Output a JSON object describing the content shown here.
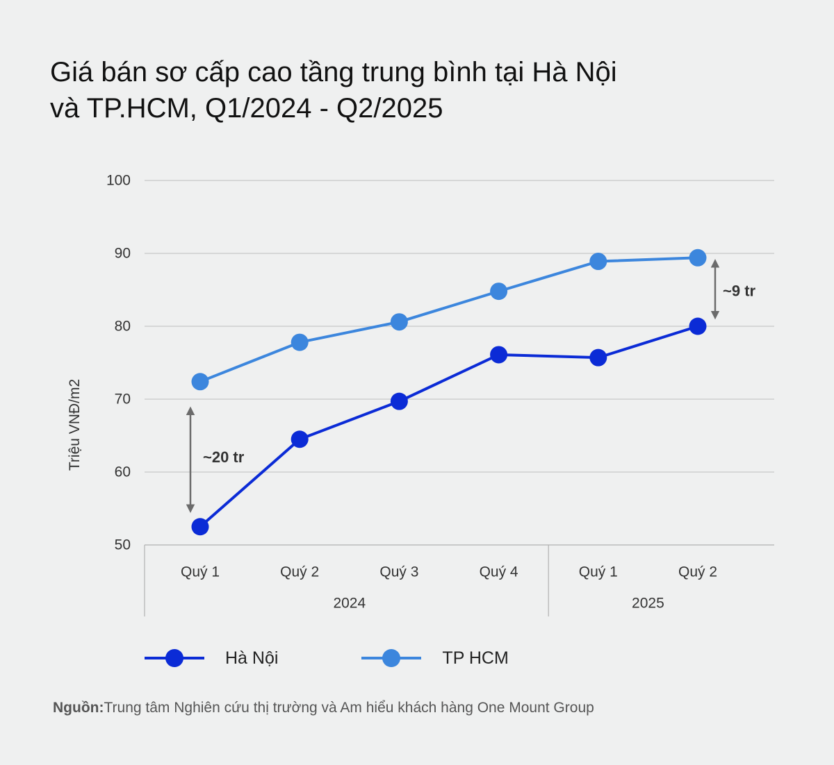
{
  "title_line1": "Giá bán sơ cấp cao tầng trung bình tại Hà Nội",
  "title_line2": "và TP.HCM, Q1/2024 - Q2/2025",
  "source_label": "Nguồn:",
  "source_text": "Trung tâm Nghiên cứu thị trường và Am hiểu khách hàng One Mount Group",
  "annotations": {
    "gap_start": "~20 tr",
    "gap_end": "~9 tr"
  },
  "colors": {
    "ha_noi": "#0b2bd6",
    "tp_hcm": "#3c86dd",
    "grid": "#c8c8c8",
    "arrow": "#6b6b6b"
  },
  "chart_data": {
    "type": "line",
    "categories": [
      "Quý 1",
      "Quý 2",
      "Quý 3",
      "Quý 4",
      "Quý 1",
      "Quý 2"
    ],
    "groups": [
      {
        "label": "2024",
        "count": 4
      },
      {
        "label": "2025",
        "count": 2
      }
    ],
    "series": [
      {
        "name": "Hà Nội",
        "values": [
          52.5,
          64.5,
          69.7,
          76.1,
          75.7,
          80.0
        ]
      },
      {
        "name": "TP HCM",
        "values": [
          72.4,
          77.8,
          80.6,
          84.8,
          88.9,
          89.4
        ]
      }
    ],
    "title": "Giá bán sơ cấp cao tầng trung bình tại Hà Nội và TP.HCM, Q1/2024 - Q2/2025",
    "xlabel": "",
    "ylabel": "Triệu VNĐ/m2",
    "ylim": [
      50,
      100
    ],
    "yticks": [
      50,
      60,
      70,
      80,
      90,
      100
    ],
    "grid": true,
    "legend": "bottom"
  }
}
